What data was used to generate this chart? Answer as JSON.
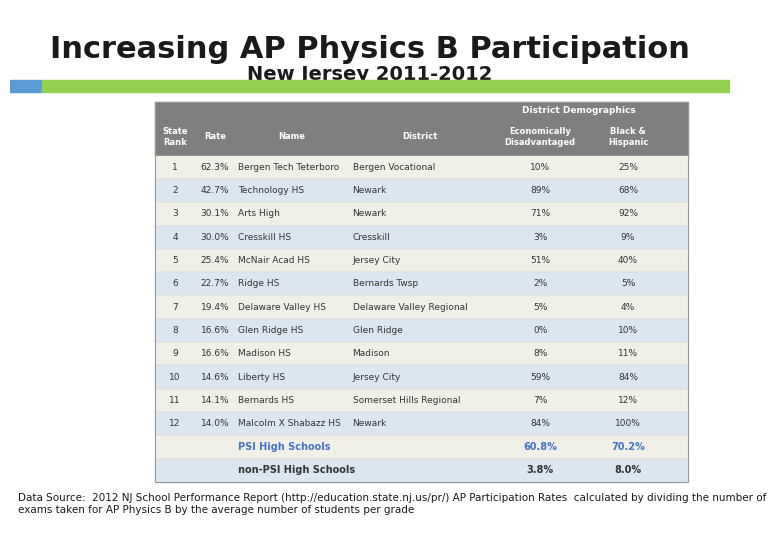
{
  "title": "Increasing AP Physics B Participation",
  "subtitle": "New Jersey 2011-2012",
  "title_fontsize": 22,
  "subtitle_fontsize": 14,
  "title_color": "#1a1a1a",
  "subtitle_color": "#1a1a1a",
  "bar_blue": "#5b9bd5",
  "bar_green": "#92d050",
  "background": "#ffffff",
  "table_bg": "#f0f0e8",
  "header_bg": "#7f7f7f",
  "header_text": "#ffffff",
  "alt_row_bg": "#dce6f1",
  "normal_row_bg": "#f0f0e8",
  "col_headers": [
    "State\nRank",
    "Rate",
    "Name",
    "District",
    "Economically\nDisadvantaged",
    "Black &\nHispanic"
  ],
  "col_header_group": "District Demographics",
  "rows": [
    [
      "1",
      "62.3%",
      "Bergen Tech Teterboro",
      "Bergen Vocational",
      "10%",
      "25%"
    ],
    [
      "2",
      "42.7%",
      "Technology HS",
      "Newark",
      "89%",
      "68%"
    ],
    [
      "3",
      "30.1%",
      "Arts High",
      "Newark",
      "71%",
      "92%"
    ],
    [
      "4",
      "30.0%",
      "Cresskill HS",
      "Cresskill",
      "3%",
      "9%"
    ],
    [
      "5",
      "25.4%",
      "McNair Acad HS",
      "Jersey City",
      "51%",
      "40%"
    ],
    [
      "6",
      "22.7%",
      "Ridge HS",
      "Bernards Twsp",
      "2%",
      "5%"
    ],
    [
      "7",
      "19.4%",
      "Delaware Valley HS",
      "Delaware Valley Regional",
      "5%",
      "4%"
    ],
    [
      "8",
      "16.6%",
      "Glen Ridge HS",
      "Glen Ridge",
      "0%",
      "10%"
    ],
    [
      "9",
      "16.6%",
      "Madison HS",
      "Madison",
      "8%",
      "11%"
    ],
    [
      "10",
      "14.6%",
      "Liberty HS",
      "Jersey City",
      "59%",
      "84%"
    ],
    [
      "11",
      "14.1%",
      "Bernards HS",
      "Somerset Hills Regional",
      "7%",
      "12%"
    ],
    [
      "12",
      "14.0%",
      "Malcolm X Shabazz HS",
      "Newark",
      "84%",
      "100%"
    ]
  ],
  "psi_row": [
    "",
    "",
    "PSI High Schools",
    "",
    "60.8%",
    "70.2%"
  ],
  "non_psi_row": [
    "",
    "",
    "non-PSI High Schools",
    "",
    "3.8%",
    "8.0%"
  ],
  "psi_color": "#4472c4",
  "footer_line1": "Data Source:  2012 NJ School Performance Report (http://education.state.nj.us/pr/) AP Participation Rates  calculated by dividing the number of",
  "footer_line2": "exams taken for AP Physics B by the average number of students per grade",
  "footer_color": "#1a1a1a",
  "footer_link_color": "#c8a000",
  "footer_fontsize": 7.5
}
